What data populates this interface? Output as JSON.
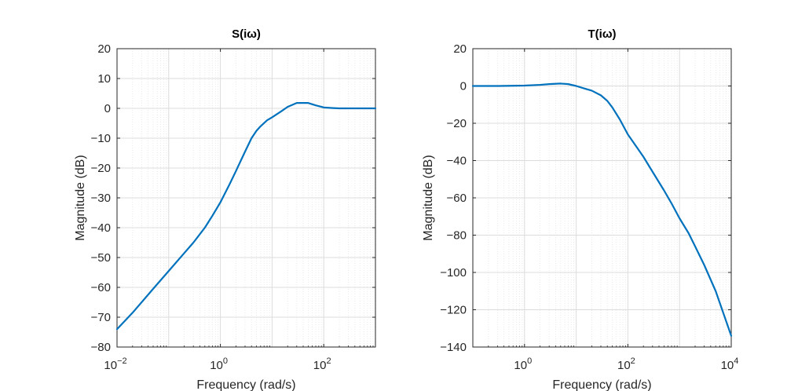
{
  "chart_data": [
    {
      "type": "line",
      "title": "S(iω)",
      "xlabel": "Frequency  (rad/s)",
      "ylabel": "Magnitude (dB)",
      "xscale": "log",
      "xlim": [
        0.01,
        1000
      ],
      "ylim": [
        -80,
        20
      ],
      "yticks": [
        20,
        10,
        0,
        -10,
        -20,
        -30,
        -40,
        -50,
        -60,
        -70,
        -80
      ],
      "xticks": [
        {
          "base": "10",
          "exp": "-2",
          "value": 0.01
        },
        {
          "base": "10",
          "exp": "0",
          "value": 1
        },
        {
          "base": "10",
          "exp": "2",
          "value": 100
        }
      ],
      "grid": true,
      "color": "#0072BD",
      "series": [
        {
          "x": [
            0.01,
            0.02,
            0.05,
            0.1,
            0.2,
            0.3,
            0.5,
            0.7,
            1,
            1.5,
            2,
            3,
            4,
            5,
            6,
            8,
            10,
            15,
            20,
            30,
            50,
            70,
            100,
            150,
            200,
            300,
            500,
            1000
          ],
          "y": [
            -74,
            -68.5,
            -60.5,
            -54.5,
            -48.5,
            -45,
            -40,
            -36,
            -31.5,
            -25.5,
            -21,
            -14.5,
            -10,
            -7.5,
            -6,
            -4,
            -3,
            -1,
            0.5,
            1.8,
            1.8,
            1,
            0.3,
            0.1,
            0,
            0,
            0,
            0
          ]
        }
      ]
    },
    {
      "type": "line",
      "title": "T(iω)",
      "xlabel": "Frequency  (rad/s)",
      "ylabel": "Magnitude (dB)",
      "xscale": "log",
      "xlim": [
        0.1,
        10000
      ],
      "ylim": [
        -140,
        20
      ],
      "yticks": [
        20,
        0,
        -20,
        -40,
        -60,
        -80,
        -100,
        -120,
        -140
      ],
      "xticks": [
        {
          "base": "10",
          "exp": "0",
          "value": 1
        },
        {
          "base": "10",
          "exp": "2",
          "value": 100
        },
        {
          "base": "10",
          "exp": "4",
          "value": 10000
        }
      ],
      "grid": true,
      "color": "#0072BD",
      "series": [
        {
          "x": [
            0.1,
            0.3,
            1,
            2,
            3,
            5,
            7,
            10,
            15,
            20,
            30,
            40,
            50,
            70,
            100,
            150,
            200,
            300,
            500,
            700,
            1000,
            1500,
            2000,
            3000,
            5000,
            10000
          ],
          "y": [
            0,
            0,
            0.2,
            0.6,
            1,
            1.3,
            1,
            0,
            -1.5,
            -2.5,
            -5,
            -8,
            -11.5,
            -18,
            -26,
            -33,
            -38,
            -46,
            -56,
            -63,
            -71,
            -79,
            -86,
            -96,
            -110,
            -134
          ]
        }
      ]
    }
  ]
}
